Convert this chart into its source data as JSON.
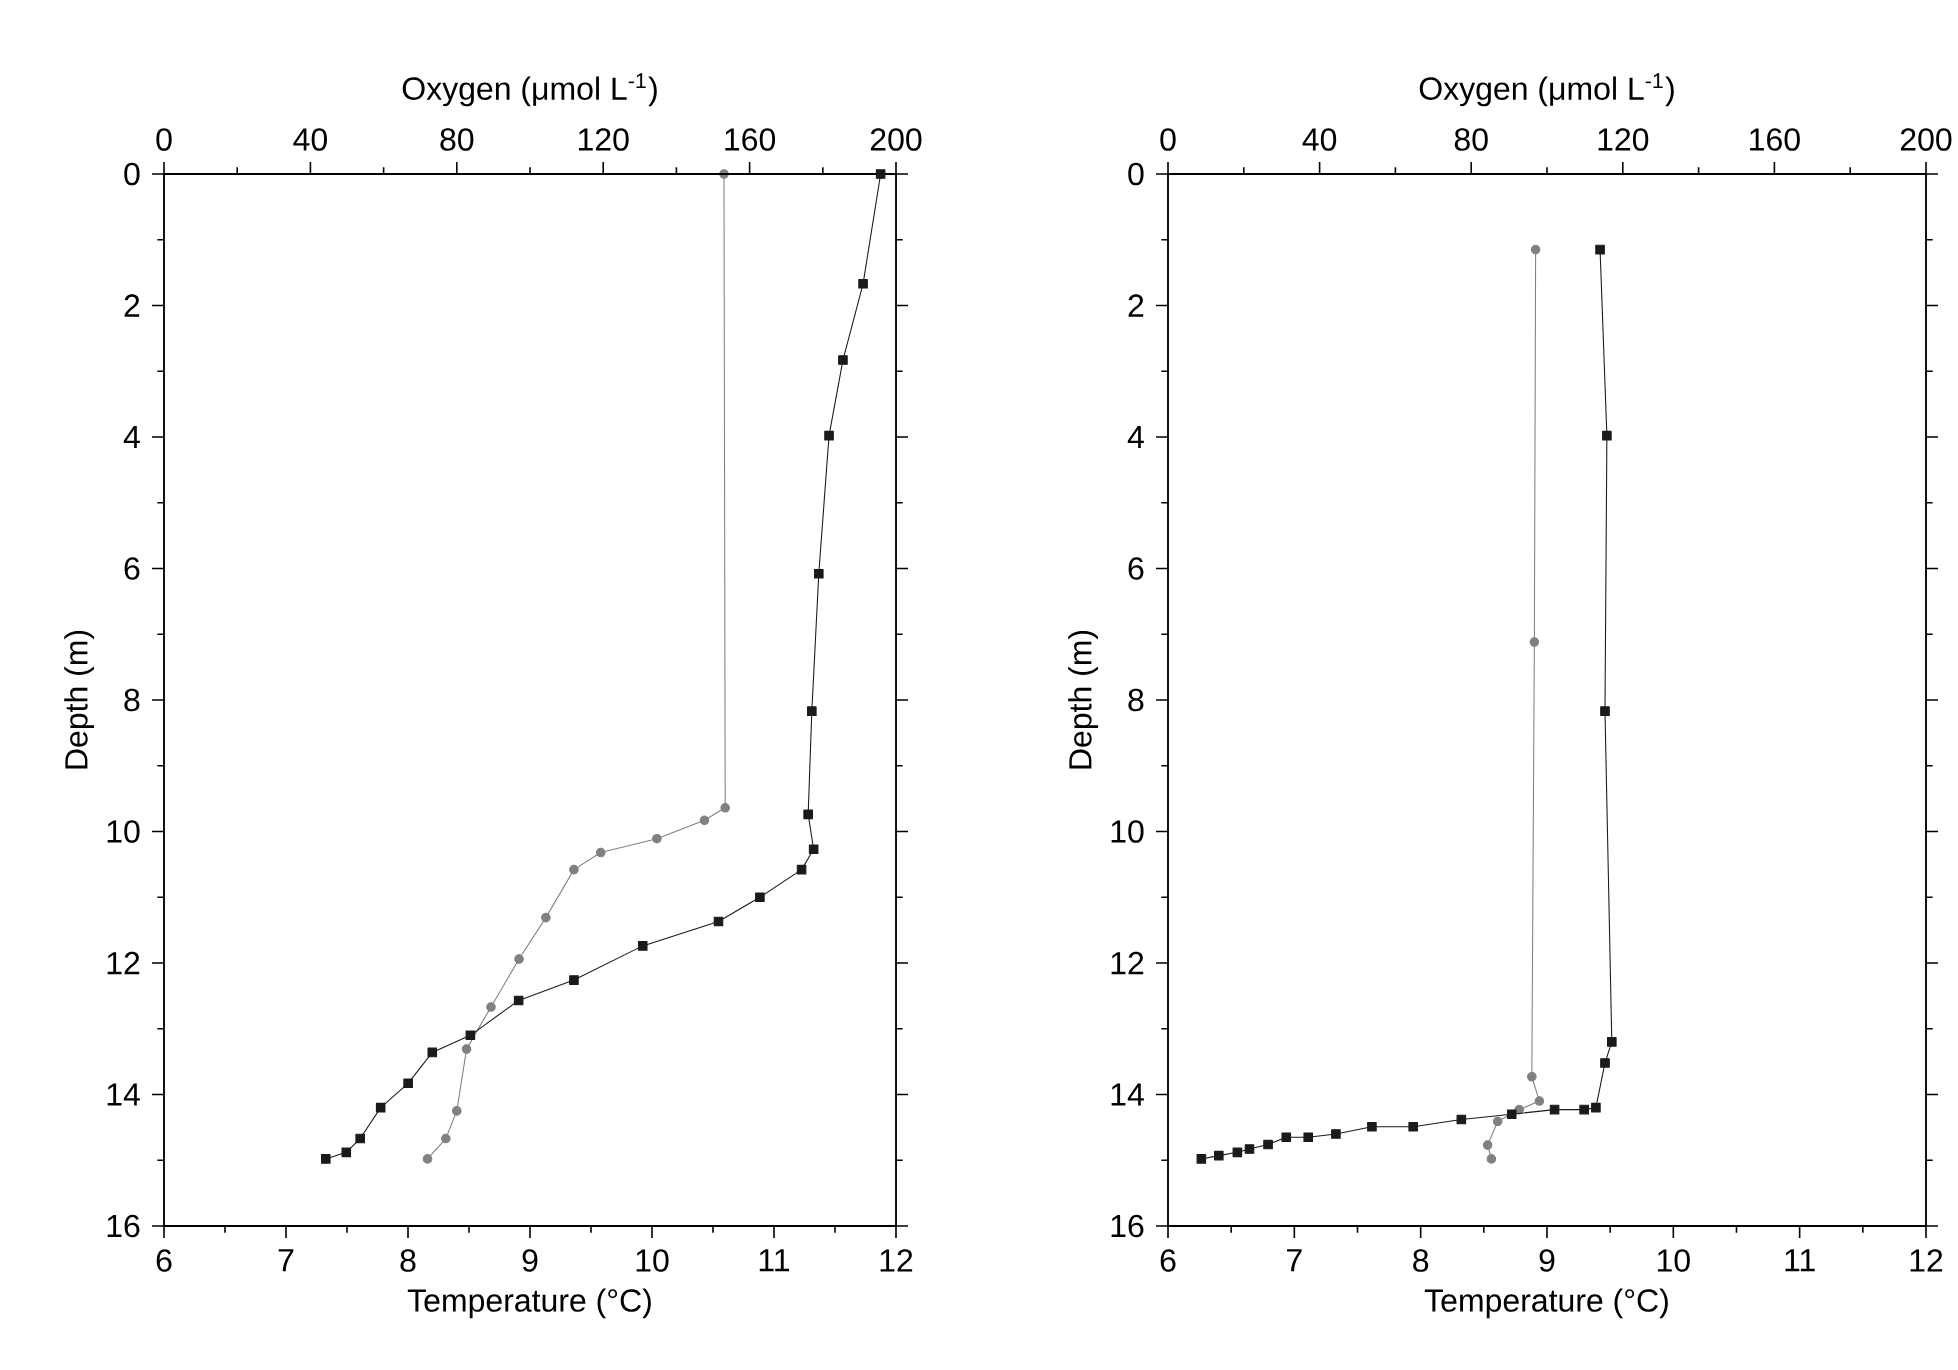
{
  "chart_data": [
    {
      "type": "line",
      "xlabel": "Temperature (°C)",
      "x2label": "Oxygen (μmol L$^{-1}$)",
      "ylabel": "Depth (m)",
      "xlim": [
        6,
        12
      ],
      "xticks": [
        6,
        7,
        8,
        9,
        10,
        11,
        12
      ],
      "x2lim": [
        0,
        200
      ],
      "x2ticks": [
        0,
        40,
        80,
        120,
        160,
        200
      ],
      "ylim": [
        16,
        0
      ],
      "yticks": [
        0,
        2,
        4,
        6,
        8,
        10,
        12,
        14,
        16
      ],
      "series": [
        {
          "color": "#808080",
          "marker": "circle",
          "x": [
            10.59,
            10.6,
            10.43,
            10.04,
            9.58,
            9.36,
            9.13,
            8.91,
            8.68,
            8.48,
            8.4,
            8.31,
            8.16
          ],
          "values": [
            0.0,
            9.64,
            9.83,
            10.11,
            10.32,
            10.58,
            11.31,
            11.94,
            12.67,
            13.31,
            14.25,
            14.67,
            14.98
          ]
        },
        {
          "color": "#1a1a1a",
          "marker": "square",
          "axis": "x2",
          "x": [
            195.8,
            191,
            185.5,
            181.7,
            178.9,
            177.0,
            176.0,
            177.5,
            174.2,
            162.8,
            151.5,
            130.8,
            112,
            96.9,
            83.7,
            73.3,
            66.7,
            59.2,
            53.6,
            49.8,
            44.2
          ],
          "values": [
            0.0,
            1.67,
            2.83,
            3.98,
            6.08,
            8.17,
            9.74,
            10.27,
            10.58,
            11.0,
            11.37,
            11.74,
            12.26,
            12.57,
            13.1,
            13.36,
            13.83,
            14.2,
            14.67,
            14.88,
            14.98
          ]
        }
      ]
    },
    {
      "type": "line",
      "xlabel": "Temperature (°C)",
      "x2label": "Oxygen (μmol L$^{-1}$)",
      "ylabel": "Depth (m)",
      "xlim": [
        6,
        12
      ],
      "xticks": [
        6,
        7,
        8,
        9,
        10,
        11,
        12
      ],
      "x2lim": [
        0,
        200
      ],
      "x2ticks": [
        0,
        40,
        80,
        120,
        160,
        200
      ],
      "ylim": [
        16,
        0
      ],
      "yticks": [
        0,
        2,
        4,
        6,
        8,
        10,
        12,
        14,
        16
      ],
      "series": [
        {
          "color": "#808080",
          "marker": "circle",
          "x": [
            8.91,
            8.9,
            8.88,
            8.94,
            8.78,
            8.61,
            8.53,
            8.56
          ],
          "values": [
            1.15,
            7.12,
            13.73,
            14.1,
            14.23,
            14.41,
            14.77,
            14.98
          ]
        },
        {
          "color": "#1a1a1a",
          "marker": "square",
          "axis": "x2",
          "x": [
            114,
            115.8,
            115.3,
            117.1,
            115.3,
            112.9,
            109.8,
            102,
            90.7,
            77.4,
            64.7,
            53.8,
            44.3,
            37,
            31.2,
            26.4,
            21.5,
            18.3,
            13.4,
            8.8
          ],
          "values": [
            1.15,
            3.98,
            8.17,
            13.2,
            13.52,
            14.2,
            14.23,
            14.23,
            14.3,
            14.38,
            14.49,
            14.49,
            14.6,
            14.65,
            14.65,
            14.76,
            14.83,
            14.88,
            14.93,
            14.98
          ]
        }
      ]
    }
  ]
}
